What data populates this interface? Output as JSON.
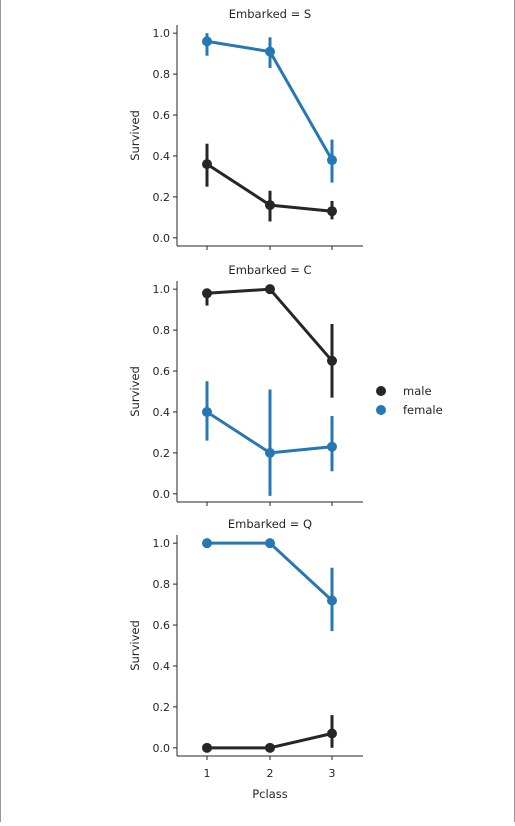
{
  "chart_data": {
    "type": "line",
    "facet_by": "Embarked",
    "xlabel": "Pclass",
    "ylabel": "Survived",
    "categories": [
      "1",
      "2",
      "3"
    ],
    "ylim": [
      -0.04,
      1.04
    ],
    "yticks": [
      "0.0",
      "0.2",
      "0.4",
      "0.6",
      "0.8",
      "1.0"
    ],
    "legend_position": "right",
    "colors": {
      "male": "#262626",
      "female": "#2678b4"
    },
    "legend": [
      {
        "name": "male",
        "color": "#262626"
      },
      {
        "name": "female",
        "color": "#2678b4"
      }
    ],
    "panels": [
      {
        "title": "Embarked = S",
        "series": [
          {
            "name": "male",
            "values": [
              0.36,
              0.16,
              0.13
            ],
            "ci_low": [
              0.25,
              0.08,
              0.09
            ],
            "ci_high": [
              0.46,
              0.23,
              0.18
            ]
          },
          {
            "name": "female",
            "values": [
              0.96,
              0.91,
              0.38
            ],
            "ci_low": [
              0.89,
              0.83,
              0.27
            ],
            "ci_high": [
              1.0,
              0.98,
              0.48
            ]
          }
        ]
      },
      {
        "title": "Embarked = C",
        "series": [
          {
            "name": "male",
            "values": [
              0.98,
              1.0,
              0.65
            ],
            "ci_low": [
              0.92,
              1.0,
              0.47
            ],
            "ci_high": [
              1.0,
              1.0,
              0.83
            ]
          },
          {
            "name": "female",
            "values": [
              0.4,
              0.2,
              0.23
            ],
            "ci_low": [
              0.26,
              -0.01,
              0.11
            ],
            "ci_high": [
              0.55,
              0.51,
              0.38
            ]
          }
        ]
      },
      {
        "title": "Embarked = Q",
        "series": [
          {
            "name": "male",
            "values": [
              0.0,
              0.0,
              0.07
            ],
            "ci_low": [
              0.0,
              0.0,
              0.0
            ],
            "ci_high": [
              0.0,
              0.0,
              0.16
            ]
          },
          {
            "name": "female",
            "values": [
              1.0,
              1.0,
              0.72
            ],
            "ci_low": [
              1.0,
              1.0,
              0.57
            ],
            "ci_high": [
              1.0,
              1.0,
              0.88
            ]
          }
        ]
      }
    ]
  }
}
